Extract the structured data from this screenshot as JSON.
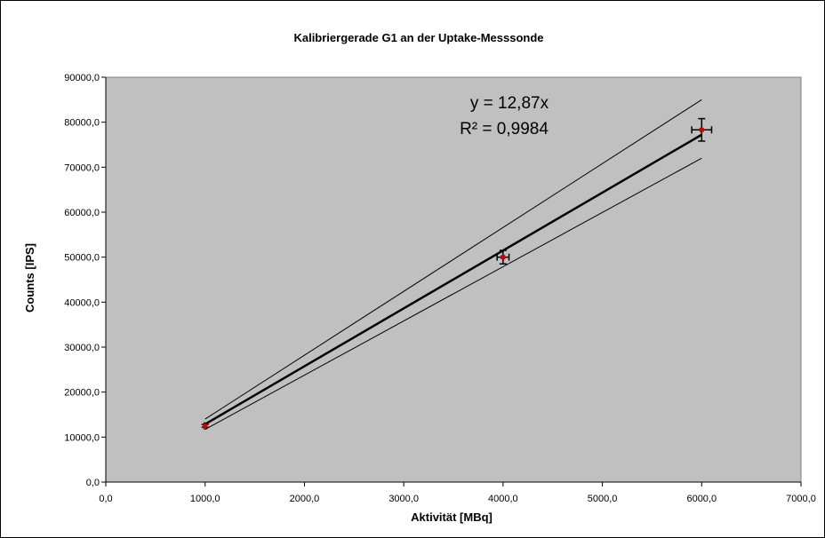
{
  "chart_data": {
    "type": "scatter",
    "title": "Kalibriergerade G1 an der Uptake-Messsonde",
    "xlabel": "Aktivität [MBq]",
    "ylabel": "Counts [IPS]",
    "xlim": [
      0,
      7000
    ],
    "ylim": [
      0,
      90000
    ],
    "x_ticks": [
      "0,0",
      "1000,0",
      "2000,0",
      "3000,0",
      "4000,0",
      "5000,0",
      "6000,0",
      "7000,0"
    ],
    "y_ticks": [
      "0,0",
      "10000,0",
      "20000,0",
      "30000,0",
      "40000,0",
      "50000,0",
      "60000,0",
      "70000,0",
      "80000,0",
      "90000,0"
    ],
    "grid": false,
    "legend": "none",
    "points": [
      {
        "x": 1000,
        "y": 12500,
        "x_err": 10,
        "y_err": 300
      },
      {
        "x": 4000,
        "y": 50000,
        "x_err": 60,
        "y_err": 1500
      },
      {
        "x": 6000,
        "y": 78300,
        "x_err": 100,
        "y_err": 2500
      }
    ],
    "fit_line": {
      "slope": 12.87,
      "x_range": [
        1000,
        6000
      ]
    },
    "confidence_upper": [
      {
        "x": 1000,
        "y": 14000
      },
      {
        "x": 6000,
        "y": 85000
      }
    ],
    "confidence_lower": [
      {
        "x": 1000,
        "y": 11700
      },
      {
        "x": 6000,
        "y": 72000
      }
    ],
    "annotation": {
      "equation": "y = 12,87x",
      "r_squared": "R² = 0,9984"
    },
    "colors": {
      "plot_bg": "#c0c0c0",
      "marker": "#cc0000",
      "line": "#000000"
    }
  }
}
